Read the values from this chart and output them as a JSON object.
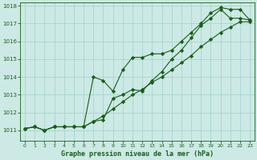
{
  "xlabel": "Graphe pression niveau de la mer (hPa)",
  "xlim": [
    -0.5,
    23.5
  ],
  "ylim": [
    1010.4,
    1018.2
  ],
  "yticks": [
    1011,
    1012,
    1013,
    1014,
    1015,
    1016,
    1017,
    1018
  ],
  "xticks": [
    0,
    1,
    2,
    3,
    4,
    5,
    6,
    7,
    8,
    9,
    10,
    11,
    12,
    13,
    14,
    15,
    16,
    17,
    18,
    19,
    20,
    21,
    22,
    23
  ],
  "background_color": "#cce9e5",
  "grid_color": "#aad4cf",
  "line_color": "#1a5c1a",
  "series": [
    [
      1011.1,
      1011.2,
      1011.0,
      1011.2,
      1011.2,
      1011.2,
      1011.2,
      1011.5,
      1011.8,
      1012.2,
      1012.6,
      1013.0,
      1013.3,
      1013.7,
      1014.0,
      1014.4,
      1014.8,
      1015.2,
      1015.7,
      1016.1,
      1016.5,
      1016.8,
      1017.1,
      1017.1
    ],
    [
      1011.1,
      1011.2,
      1011.0,
      1011.2,
      1011.2,
      1011.2,
      1011.2,
      1014.0,
      1013.8,
      1013.2,
      1014.4,
      1015.1,
      1015.1,
      1015.3,
      1015.3,
      1015.5,
      1016.0,
      1016.5,
      1017.0,
      1017.6,
      1017.9,
      1017.8,
      1017.8,
      1017.2
    ],
    [
      1011.1,
      1011.2,
      1011.0,
      1011.2,
      1011.2,
      1011.2,
      1011.2,
      1011.5,
      1011.6,
      1012.8,
      1013.0,
      1013.3,
      1013.2,
      1013.8,
      1014.3,
      1015.0,
      1015.5,
      1016.2,
      1016.9,
      1017.3,
      1017.8,
      1017.3,
      1017.3,
      1017.2
    ]
  ]
}
